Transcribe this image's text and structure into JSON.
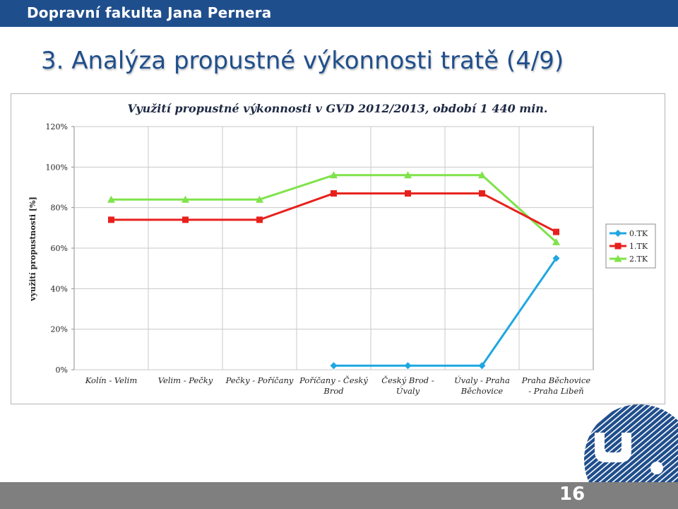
{
  "header": {
    "institution": "Dopravní fakulta Jana Pernera"
  },
  "slide": {
    "title": "3. Analýza propustné výkonnosti tratě (4/9)",
    "page_number": "16"
  },
  "colors": {
    "brand": "#1f4e8c",
    "footer": "#7f7f7f"
  },
  "chart_data": {
    "type": "line",
    "title": "Využití propustné výkonnosti v GVD 2012/2013, období 1 440 min.",
    "xlabel": "",
    "ylabel": "využití propustnosti [%]",
    "ylim": [
      0,
      120
    ],
    "yticks": [
      "0%",
      "20%",
      "40%",
      "60%",
      "80%",
      "100%",
      "120%"
    ],
    "grid": true,
    "legend_position": "right",
    "categories": [
      [
        "Kolín - Velim"
      ],
      [
        "Velim - Pečky"
      ],
      [
        "Pečky - Poříčany"
      ],
      [
        "Poříčany - Český",
        "Brod"
      ],
      [
        "Český Brod -",
        "Úvaly"
      ],
      [
        "Úvaly - Praha",
        "Běchovice"
      ],
      [
        "Praha Běchovice",
        "- Praha Libeň"
      ]
    ],
    "series": [
      {
        "name": "0.TK",
        "color": "#1ea7e1",
        "marker": "diamond",
        "values": [
          null,
          null,
          null,
          2,
          2,
          2,
          55
        ]
      },
      {
        "name": "1.TK",
        "color": "#e8201c",
        "marker": "square",
        "values": [
          74,
          74,
          74,
          87,
          87,
          87,
          68
        ]
      },
      {
        "name": "2.TK",
        "color": "#7fe34a",
        "marker": "triangle",
        "values": [
          84,
          84,
          84,
          96,
          96,
          96,
          63
        ]
      }
    ]
  }
}
